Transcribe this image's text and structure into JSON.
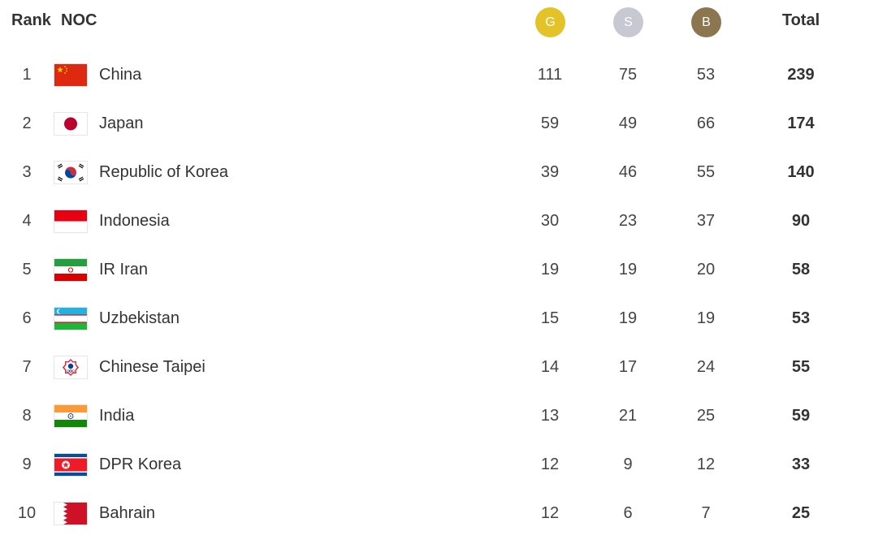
{
  "header": {
    "rank": "Rank",
    "noc": "NOC",
    "gold": "G",
    "silver": "S",
    "bronze": "B",
    "total": "Total"
  },
  "colors": {
    "gold": "#e3c327",
    "silver": "#c8c8d2",
    "bronze": "#8c7650"
  },
  "rows": [
    {
      "rank": "1",
      "country": "China",
      "flag_icon": "china-flag-icon",
      "gold": "111",
      "silver": "75",
      "bronze": "53",
      "total": "239"
    },
    {
      "rank": "2",
      "country": "Japan",
      "flag_icon": "japan-flag-icon",
      "gold": "59",
      "silver": "49",
      "bronze": "66",
      "total": "174"
    },
    {
      "rank": "3",
      "country": "Republic of Korea",
      "flag_icon": "korea-flag-icon",
      "gold": "39",
      "silver": "46",
      "bronze": "55",
      "total": "140"
    },
    {
      "rank": "4",
      "country": "Indonesia",
      "flag_icon": "indonesia-flag-icon",
      "gold": "30",
      "silver": "23",
      "bronze": "37",
      "total": "90"
    },
    {
      "rank": "5",
      "country": "IR Iran",
      "flag_icon": "iran-flag-icon",
      "gold": "19",
      "silver": "19",
      "bronze": "20",
      "total": "58"
    },
    {
      "rank": "6",
      "country": "Uzbekistan",
      "flag_icon": "uzbekistan-flag-icon",
      "gold": "15",
      "silver": "19",
      "bronze": "19",
      "total": "53"
    },
    {
      "rank": "7",
      "country": "Chinese Taipei",
      "flag_icon": "chinese-taipei-flag-icon",
      "gold": "14",
      "silver": "17",
      "bronze": "24",
      "total": "55"
    },
    {
      "rank": "8",
      "country": "India",
      "flag_icon": "india-flag-icon",
      "gold": "13",
      "silver": "21",
      "bronze": "25",
      "total": "59"
    },
    {
      "rank": "9",
      "country": "DPR Korea",
      "flag_icon": "dpr-korea-flag-icon",
      "gold": "12",
      "silver": "9",
      "bronze": "12",
      "total": "33"
    },
    {
      "rank": "10",
      "country": "Bahrain",
      "flag_icon": "bahrain-flag-icon",
      "gold": "12",
      "silver": "6",
      "bronze": "7",
      "total": "25"
    }
  ]
}
